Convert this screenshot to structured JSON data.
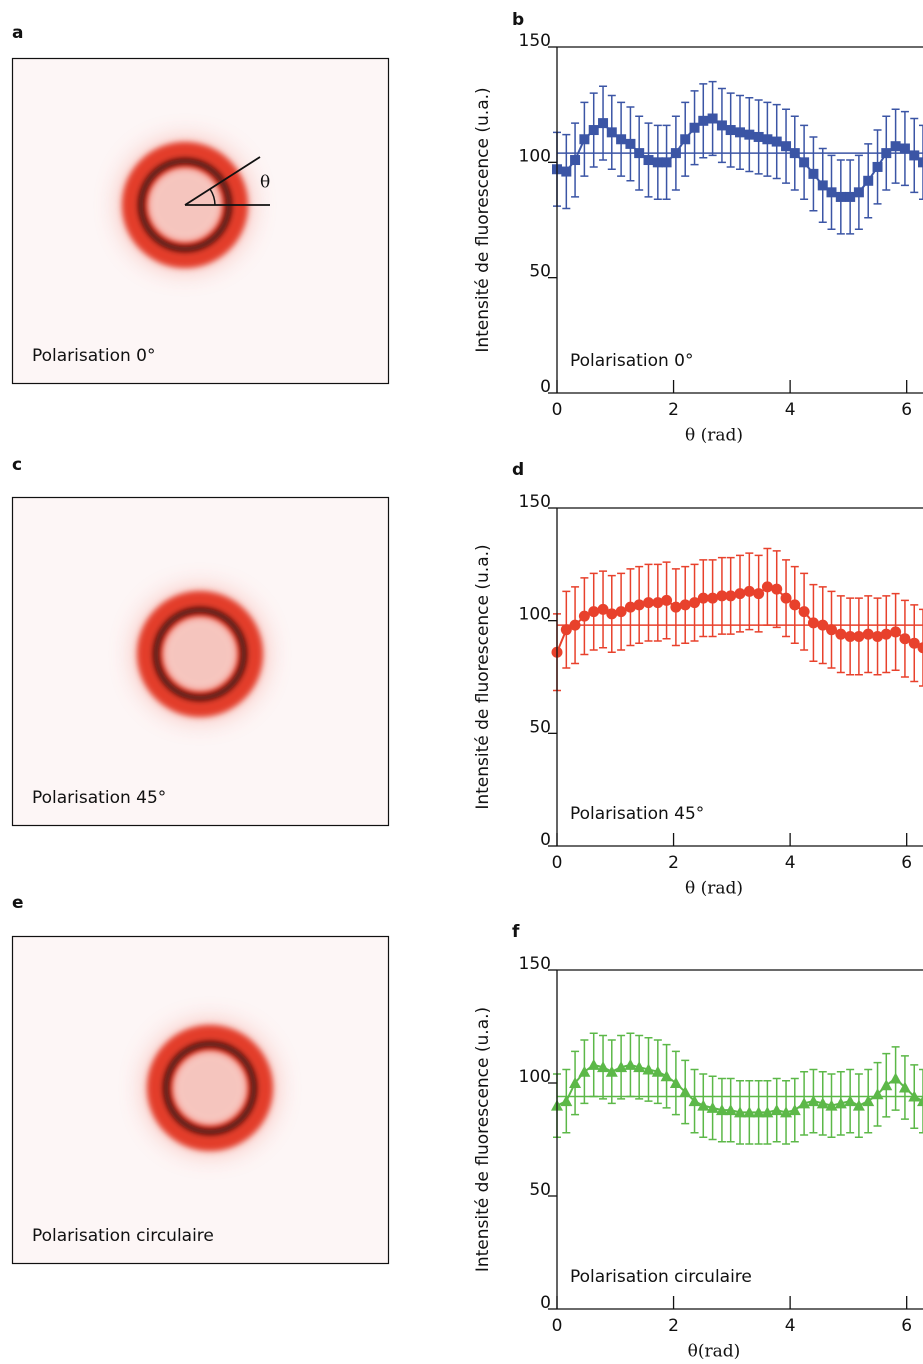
{
  "panels": [
    {
      "letter": "a",
      "label": "Polarisation 0°",
      "angle_label": "θ"
    },
    {
      "letter": "c",
      "label": "Polarisation 45°"
    },
    {
      "letter": "e",
      "label": "Polarisation circulaire"
    }
  ],
  "chart_data": [
    {
      "type": "scatter",
      "panel": "b",
      "annotation": "Polarisation 0°",
      "x_label": "θ (rad)",
      "y_label": "Intensité de fluorescence (u.a.)",
      "xlim": [
        0,
        6.28
      ],
      "ylim": [
        0,
        150
      ],
      "xticks": [
        0,
        2,
        4,
        6
      ],
      "yticks": [
        0,
        50,
        100,
        150
      ],
      "reference_line": 104,
      "marker": "square",
      "color": "#3b55a5",
      "error": 16,
      "x": [
        0,
        0.16,
        0.31,
        0.47,
        0.63,
        0.79,
        0.94,
        1.1,
        1.26,
        1.41,
        1.57,
        1.73,
        1.88,
        2.04,
        2.2,
        2.36,
        2.51,
        2.67,
        2.83,
        2.98,
        3.14,
        3.3,
        3.46,
        3.61,
        3.77,
        3.93,
        4.08,
        4.24,
        4.4,
        4.56,
        4.71,
        4.87,
        5.03,
        5.18,
        5.34,
        5.5,
        5.65,
        5.81,
        5.97,
        6.13,
        6.28
      ],
      "values": [
        97,
        96,
        101,
        110,
        114,
        117,
        113,
        110,
        108,
        104,
        101,
        100,
        100,
        104,
        110,
        115,
        118,
        119,
        116,
        114,
        113,
        112,
        111,
        110,
        109,
        107,
        104,
        100,
        95,
        90,
        87,
        85,
        85,
        87,
        92,
        98,
        104,
        107,
        106,
        103,
        100
      ]
    },
    {
      "type": "scatter",
      "panel": "d",
      "annotation": "Polarisation 45°",
      "x_label": "θ (rad)",
      "y_label": "Intensité de fluorescence (u.a.)",
      "xlim": [
        0,
        6.28
      ],
      "ylim": [
        0,
        150
      ],
      "xticks": [
        0,
        2,
        4,
        6
      ],
      "yticks": [
        0,
        50,
        100,
        150
      ],
      "reference_line": 98,
      "marker": "circle",
      "color": "#e8412c",
      "error": 17,
      "x": [
        0,
        0.16,
        0.31,
        0.47,
        0.63,
        0.79,
        0.94,
        1.1,
        1.26,
        1.41,
        1.57,
        1.73,
        1.88,
        2.04,
        2.2,
        2.36,
        2.51,
        2.67,
        2.83,
        2.98,
        3.14,
        3.3,
        3.46,
        3.61,
        3.77,
        3.93,
        4.08,
        4.24,
        4.4,
        4.56,
        4.71,
        4.87,
        5.03,
        5.18,
        5.34,
        5.5,
        5.65,
        5.81,
        5.97,
        6.13,
        6.28
      ],
      "values": [
        86,
        96,
        98,
        102,
        104,
        105,
        103,
        104,
        106,
        107,
        108,
        108,
        109,
        106,
        107,
        108,
        110,
        110,
        111,
        111,
        112,
        113,
        112,
        115,
        114,
        110,
        107,
        104,
        99,
        98,
        96,
        94,
        93,
        93,
        94,
        93,
        94,
        95,
        92,
        90,
        88
      ]
    },
    {
      "type": "scatter",
      "panel": "f",
      "annotation": "Polarisation circulaire",
      "x_label": "θ(rad)",
      "y_label": "Intensité de fluorescence (u.a.)",
      "xlim": [
        0,
        6.28
      ],
      "ylim": [
        0,
        150
      ],
      "xticks": [
        0,
        2,
        4,
        6
      ],
      "yticks": [
        0,
        50,
        100,
        150
      ],
      "reference_line": 94,
      "marker": "triangle",
      "color": "#5cb848",
      "error": 14,
      "x": [
        0,
        0.16,
        0.31,
        0.47,
        0.63,
        0.79,
        0.94,
        1.1,
        1.26,
        1.41,
        1.57,
        1.73,
        1.88,
        2.04,
        2.2,
        2.36,
        2.51,
        2.67,
        2.83,
        2.98,
        3.14,
        3.3,
        3.46,
        3.61,
        3.77,
        3.93,
        4.08,
        4.24,
        4.4,
        4.56,
        4.71,
        4.87,
        5.03,
        5.18,
        5.34,
        5.5,
        5.65,
        5.81,
        5.97,
        6.13,
        6.28
      ],
      "values": [
        90,
        92,
        100,
        105,
        108,
        107,
        105,
        107,
        108,
        107,
        106,
        105,
        103,
        100,
        96,
        92,
        90,
        89,
        88,
        88,
        87,
        87,
        87,
        87,
        88,
        87,
        88,
        91,
        92,
        91,
        90,
        91,
        92,
        90,
        92,
        95,
        99,
        102,
        98,
        94,
        92
      ]
    }
  ]
}
